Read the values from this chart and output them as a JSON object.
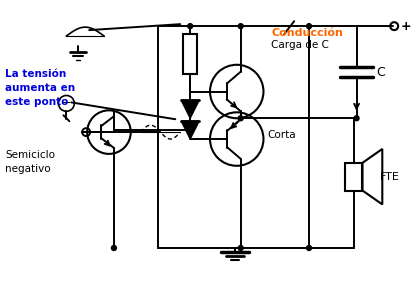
{
  "background_color": "#ffffff",
  "line_color": "#000000",
  "text_conduction": "Conducción",
  "text_carga": "Carga de C",
  "text_tension": "La tensión\naumenta en\neste ponto",
  "text_semiciclo": "Semiciclo\nnegativo",
  "text_corta": "Corta",
  "text_fte": "FTE",
  "text_plus": "+",
  "text_C": "C",
  "conduction_color": "#ff6600",
  "tension_color": "#0000dd"
}
